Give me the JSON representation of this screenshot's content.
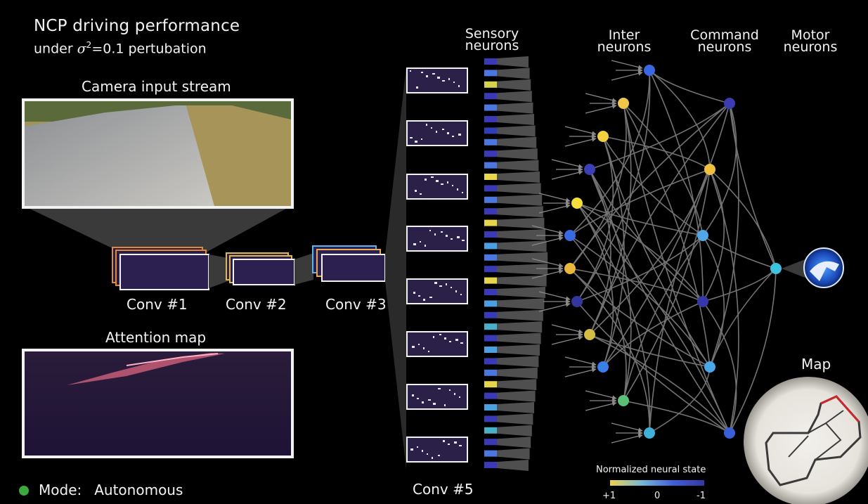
{
  "header": {
    "title": "NCP driving performance",
    "subtitle_prefix": "under ",
    "subtitle_math": "σ",
    "subtitle_sup": "2",
    "subtitle_suffix": "=0.1 pertubation"
  },
  "camera": {
    "label": "Camera input stream"
  },
  "attention": {
    "label": "Attention map"
  },
  "conv_layers": [
    "Conv #1",
    "Conv #2",
    "Conv #3",
    "Conv #5"
  ],
  "network": {
    "sensory_label": "Sensory\nneurons",
    "inter_label": "Inter\nneurons",
    "command_label": "Command\nneurons",
    "motor_label": "Motor\nneurons",
    "inter_colors": [
      "#3a68e0",
      "#f0c64a",
      "#f2d040",
      "#3b40b8",
      "#f4dc3a",
      "#3a6ae2",
      "#e8b83a",
      "#3436a0",
      "#d4be42",
      "#3a7ee8",
      "#5cbf76",
      "#3fb0d8"
    ],
    "command_colors": [
      "#3a3cb0",
      "#f0c040",
      "#50a8e8",
      "#3438a8",
      "#4aa8e8",
      "#3a60d8"
    ],
    "motor_color": "#3fc4e0",
    "sensory_colors": [
      "#3a3ab8",
      "#4a78e0",
      "#d8d24a",
      "#3a3ab8",
      "#4a78e0",
      "#3a3ab8",
      "#2f3fb8",
      "#4a78e0",
      "#3a3ab8",
      "#4a78e0",
      "#e8d84a",
      "#3a3ab8",
      "#4a78e0",
      "#3a3ab8",
      "#e6d548",
      "#3a3ab8",
      "#4aa0e0",
      "#4a78e0",
      "#3a3ab8",
      "#e6d548",
      "#3a3ab8",
      "#4aa0e0",
      "#3a3ab8",
      "#48b0c8",
      "#3a3ab8",
      "#4aa0e0",
      "#3a3ab8",
      "#4a78e0",
      "#e6d548",
      "#3a3ab8",
      "#4aa0e0",
      "#3a3ab8",
      "#48b0c8",
      "#3a3ab8",
      "#4a78e0",
      "#3a3ab8"
    ]
  },
  "map": {
    "label": "Map"
  },
  "legend": {
    "title": "Normalized neural state",
    "tick_left": "+1",
    "tick_mid": "0",
    "tick_right": "-1"
  },
  "mode": {
    "label": "Mode:",
    "value": "Autonomous",
    "color": "#3daa3d"
  }
}
